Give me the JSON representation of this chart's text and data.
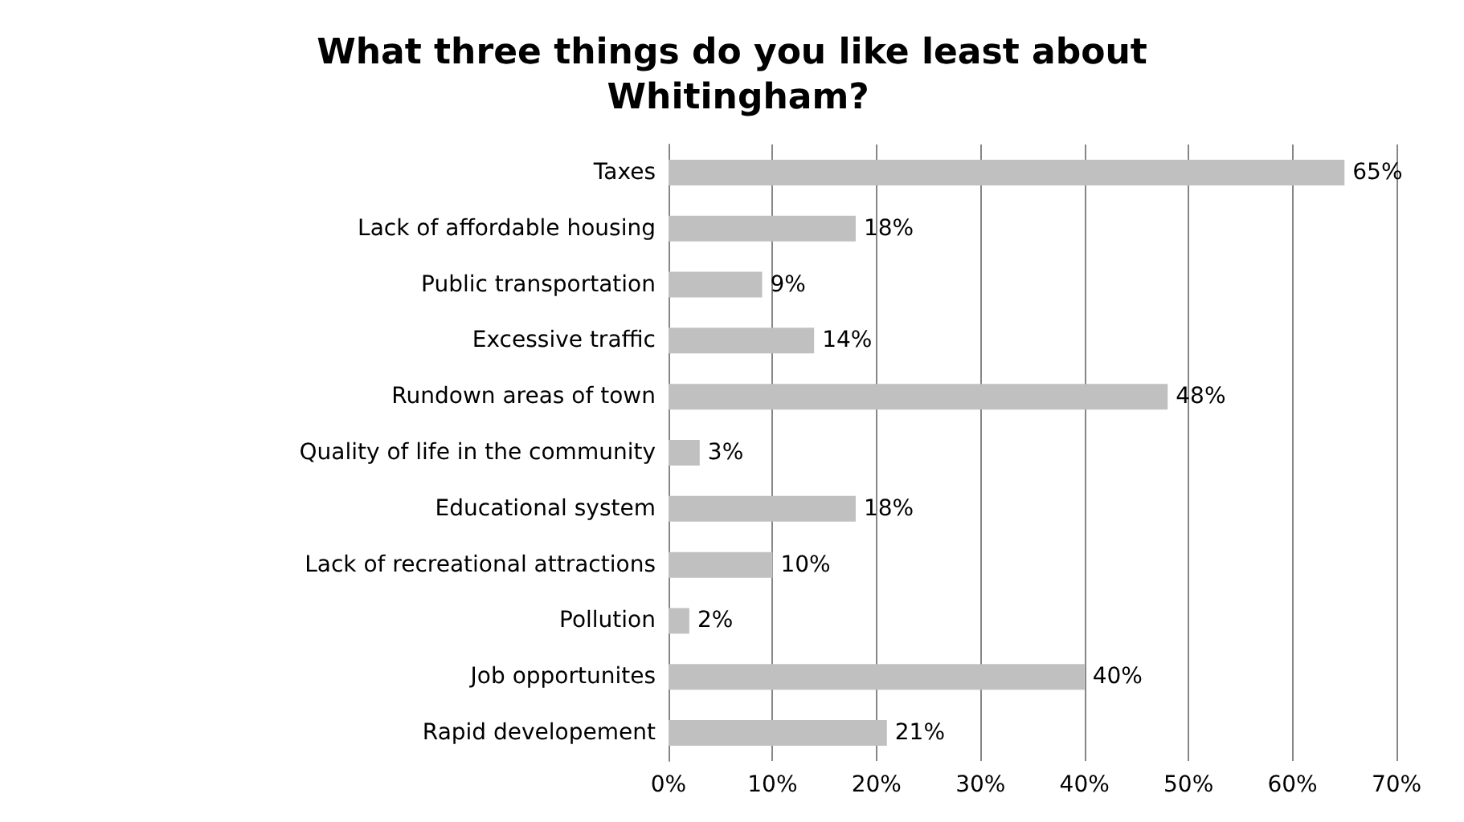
{
  "chart_data": {
    "type": "bar",
    "orientation": "horizontal",
    "title": "What three things do you like least about Whitingham?",
    "categories": [
      "Taxes",
      "Lack of affordable housing",
      "Public transportation",
      "Excessive traffic",
      "Rundown areas of town",
      "Quality of life in the community",
      "Educational system",
      "Lack of recreational attractions",
      "Pollution",
      "Job opportunites",
      "Rapid developement"
    ],
    "values": [
      65,
      18,
      9,
      14,
      48,
      3,
      18,
      10,
      2,
      40,
      21
    ],
    "value_labels": [
      "65%",
      "18%",
      "9%",
      "14%",
      "48%",
      "3%",
      "18%",
      "10%",
      "2%",
      "40%",
      "21%"
    ],
    "color": "#c0c0c0",
    "xlim": [
      0,
      70
    ],
    "xticks": [
      {
        "value": 0,
        "label": "0%"
      },
      {
        "value": 10,
        "label": "10%"
      },
      {
        "value": 20,
        "label": "20%"
      },
      {
        "value": 30,
        "label": "30%"
      },
      {
        "value": 40,
        "label": "40%"
      },
      {
        "value": 50,
        "label": "50%"
      },
      {
        "value": 60,
        "label": "60%"
      },
      {
        "value": 70,
        "label": "70%"
      }
    ],
    "grid": "x"
  }
}
